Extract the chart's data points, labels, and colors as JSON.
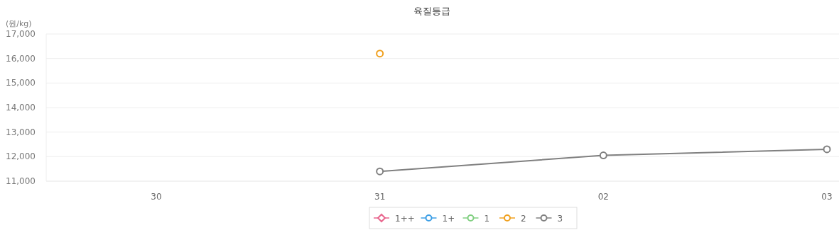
{
  "chart_data": {
    "type": "line",
    "title": "육질등급",
    "ylabel": "(원/kg)",
    "categories": [
      "30",
      "31",
      "02",
      "03"
    ],
    "ylim": [
      11000,
      17000
    ],
    "yticks": [
      {
        "value": 11000,
        "label": "11,000"
      },
      {
        "value": 12000,
        "label": "12,000"
      },
      {
        "value": 13000,
        "label": "13,000"
      },
      {
        "value": 14000,
        "label": "14,000"
      },
      {
        "value": 15000,
        "label": "15,000"
      },
      {
        "value": 16000,
        "label": "16,000"
      },
      {
        "value": 17000,
        "label": "17,000"
      }
    ],
    "grid": "y",
    "legend": "bottom",
    "marker": "circle",
    "line_style": "solid",
    "series": [
      {
        "name": "1++",
        "color": "#e8648c",
        "marker": "diamond",
        "values": [
          null,
          null,
          null,
          null
        ]
      },
      {
        "name": "1+",
        "color": "#3d9fe6",
        "values": [
          null,
          null,
          null,
          null
        ]
      },
      {
        "name": "1",
        "color": "#80cf80",
        "values": [
          null,
          null,
          null,
          null
        ]
      },
      {
        "name": "2",
        "color": "#f0a01e",
        "values": [
          null,
          16200,
          null,
          null
        ]
      },
      {
        "name": "3",
        "color": "#808080",
        "values": [
          null,
          11400,
          12050,
          12300
        ]
      }
    ]
  }
}
